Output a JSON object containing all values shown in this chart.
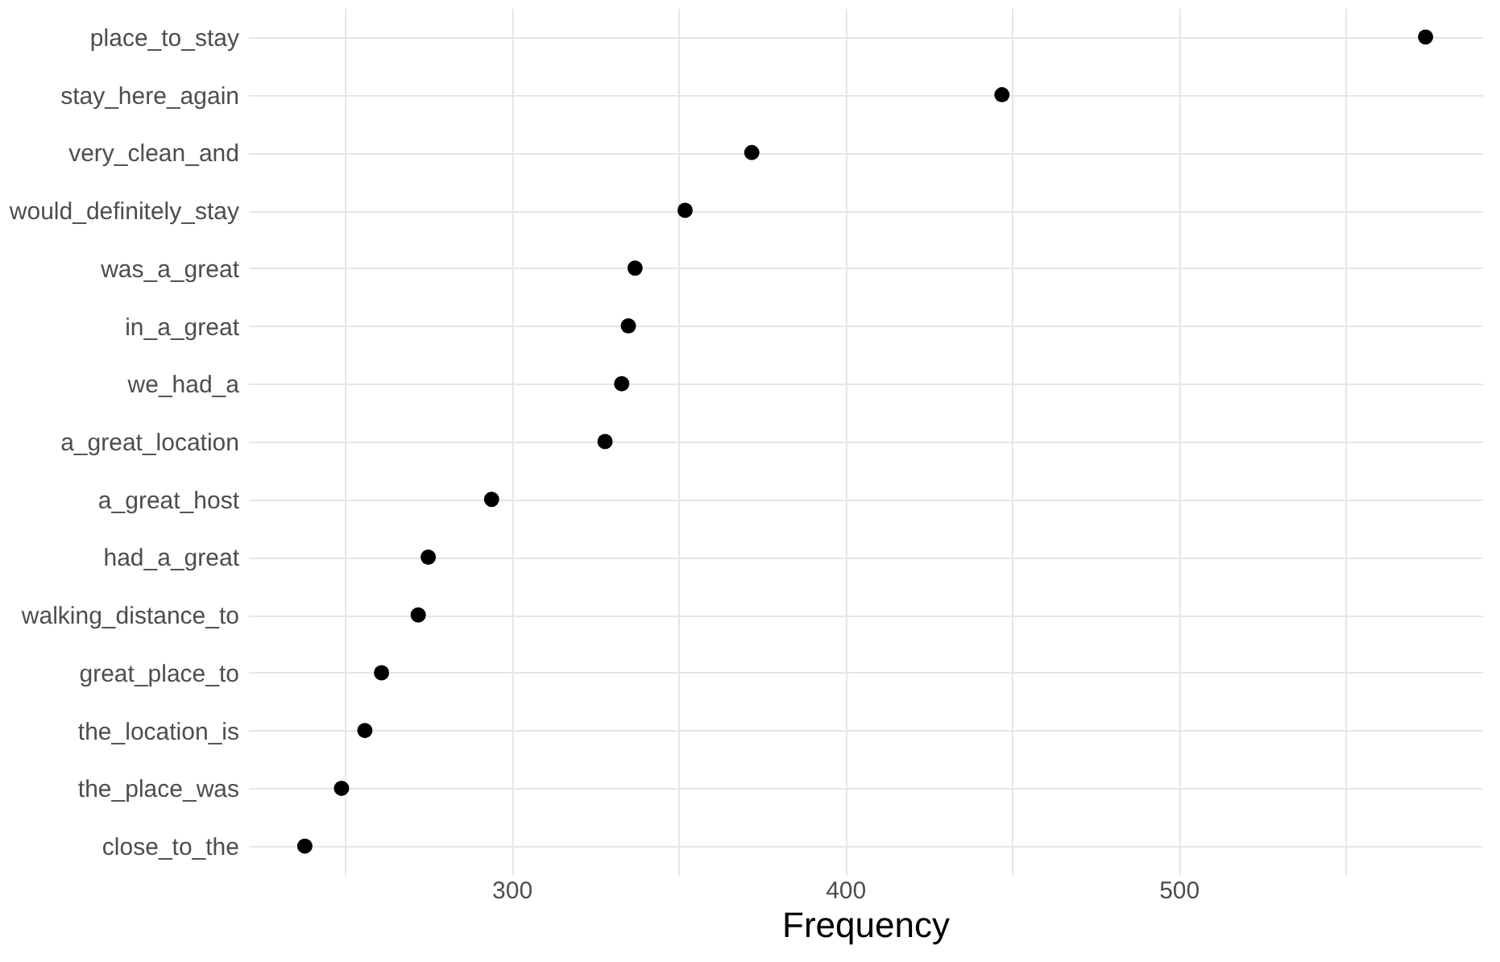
{
  "chart_data": {
    "type": "scatter",
    "orientation": "horizontal",
    "xlabel": "Frequency",
    "categories": [
      "place_to_stay",
      "stay_here_again",
      "very_clean_and",
      "would_definitely_stay",
      "was_a_great",
      "in_a_great",
      "we_had_a",
      "a_great_location",
      "a_great_host",
      "had_a_great",
      "walking_distance_to",
      "great_place_to",
      "the_location_is",
      "the_place_was",
      "close_to_the"
    ],
    "series": [
      {
        "color": "#000000",
        "values": [
          574,
          447,
          372,
          352,
          337,
          335,
          333,
          328,
          294,
          275,
          272,
          261,
          256,
          249,
          238
        ]
      }
    ],
    "xlim": [
      221,
      591
    ],
    "xticks": [
      {
        "value": 250,
        "label": null
      },
      300,
      {
        "value": 350,
        "label": null
      },
      400,
      {
        "value": 450,
        "label": null
      },
      500,
      {
        "value": 550,
        "label": null
      }
    ],
    "grid": true,
    "marker": "circle"
  }
}
